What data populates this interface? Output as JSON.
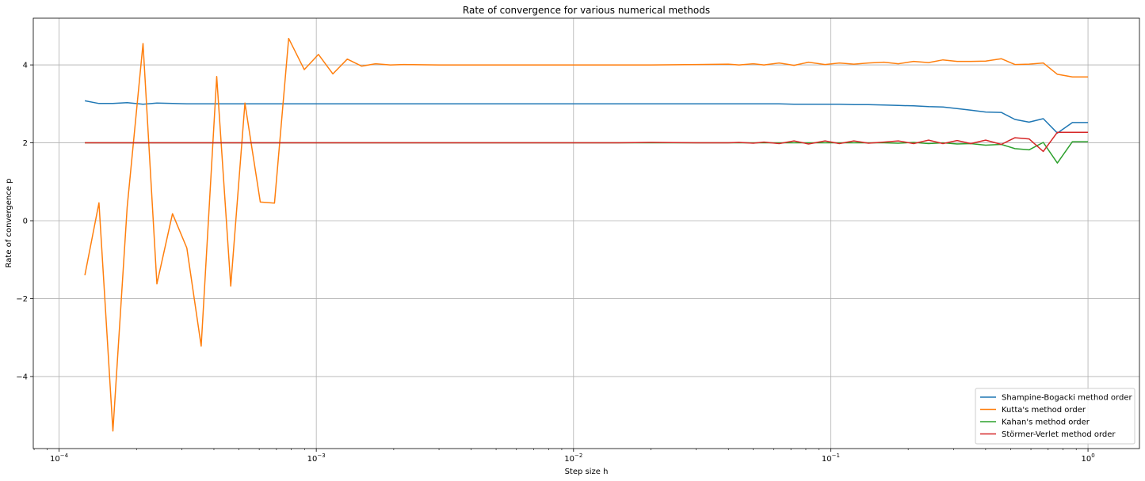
{
  "chart_data": {
    "type": "line",
    "title": "Rate of convergence for various numerical methods",
    "xlabel": "Step size h",
    "ylabel": "Rate of convergence p",
    "xscale": "log",
    "xlim": [
      7.94e-05,
      1.585
    ],
    "ylim": [
      -5.85,
      5.2
    ],
    "grid": true,
    "legend_position": "lower-right",
    "x_ticks": [
      {
        "value": 0.0001,
        "base": "10",
        "exp": "−4"
      },
      {
        "value": 0.001,
        "base": "10",
        "exp": "−3"
      },
      {
        "value": 0.01,
        "base": "10",
        "exp": "−2"
      },
      {
        "value": 0.1,
        "base": "10",
        "exp": "−1"
      },
      {
        "value": 1,
        "base": "10",
        "exp": "0"
      }
    ],
    "y_ticks": [
      {
        "value": -4,
        "label": "−4"
      },
      {
        "value": -2,
        "label": "−2"
      },
      {
        "value": 0,
        "label": "0"
      },
      {
        "value": 2,
        "label": "2"
      },
      {
        "value": 4,
        "label": "4"
      }
    ],
    "x": [
      0.000126,
      0.000143,
      0.000162,
      0.000184,
      0.000212,
      0.00024,
      0.000276,
      0.000314,
      0.000357,
      0.00041,
      0.000465,
      0.000528,
      0.000606,
      0.000688,
      0.000781,
      0.000898,
      0.00102,
      0.00116,
      0.00132,
      0.0015,
      0.0017,
      0.00194,
      0.0022,
      0.003,
      0.005,
      0.008,
      0.01,
      0.015,
      0.02,
      0.03,
      0.04,
      0.044,
      0.05,
      0.055,
      0.063,
      0.072,
      0.082,
      0.095,
      0.108,
      0.123,
      0.14,
      0.161,
      0.183,
      0.21,
      0.24,
      0.273,
      0.31,
      0.35,
      0.4,
      0.46,
      0.52,
      0.59,
      0.67,
      0.76,
      0.87,
      1.0
    ],
    "series": [
      {
        "name": "Shampine-Bogacki method order",
        "color": "#1f77b4",
        "values": [
          3.08,
          3.01,
          3.01,
          3.03,
          2.99,
          3.02,
          3.01,
          3.0,
          3.0,
          3.0,
          3.0,
          3.0,
          3.0,
          3.0,
          3.0,
          3.0,
          3.0,
          3.0,
          3.0,
          3.0,
          3.0,
          3.0,
          3.0,
          3.0,
          3.0,
          3.0,
          3.0,
          3.0,
          3.0,
          3.0,
          3.0,
          3.0,
          3.0,
          3.0,
          3.0,
          2.99,
          2.99,
          2.99,
          2.99,
          2.98,
          2.98,
          2.97,
          2.96,
          2.95,
          2.93,
          2.92,
          2.88,
          2.84,
          2.79,
          2.78,
          2.6,
          2.53,
          2.62,
          2.25,
          2.52,
          2.52
        ]
      },
      {
        "name": "Kutta's method order",
        "color": "#ff7f0e",
        "values": [
          -1.4,
          0.46,
          -5.4,
          0.35,
          4.55,
          -1.62,
          0.18,
          -0.7,
          -3.22,
          3.7,
          -1.68,
          3.02,
          0.48,
          0.45,
          4.68,
          3.88,
          4.27,
          3.77,
          4.15,
          3.97,
          4.03,
          4.0,
          4.01,
          4.0,
          4.0,
          4.0,
          4.0,
          4.0,
          4.0,
          4.01,
          4.02,
          4.0,
          4.03,
          4.0,
          4.05,
          3.99,
          4.07,
          4.01,
          4.05,
          4.02,
          4.05,
          4.07,
          4.03,
          4.09,
          4.06,
          4.13,
          4.09,
          4.09,
          4.1,
          4.16,
          4.01,
          4.02,
          4.05,
          3.76,
          3.69,
          3.69
        ]
      },
      {
        "name": "Kahan's method order",
        "color": "#2ca02c",
        "values": [
          2.0,
          2.0,
          2.0,
          2.0,
          2.0,
          2.0,
          2.0,
          2.0,
          2.0,
          2.0,
          2.0,
          2.0,
          2.0,
          2.0,
          2.0,
          2.0,
          2.0,
          2.0,
          2.0,
          2.0,
          2.0,
          2.0,
          2.0,
          2.0,
          2.0,
          2.0,
          2.0,
          2.0,
          2.0,
          2.0,
          2.0,
          2.0,
          2.0,
          2.0,
          2.0,
          2.0,
          2.0,
          2.0,
          2.0,
          2.0,
          2.0,
          2.0,
          1.99,
          2.01,
          1.98,
          2.0,
          1.97,
          1.98,
          1.94,
          1.96,
          1.85,
          1.82,
          2.01,
          1.48,
          2.03,
          2.03
        ]
      },
      {
        "name": "Störmer-Verlet method order",
        "color": "#d62728",
        "values": [
          2.0,
          2.0,
          2.0,
          2.0,
          2.0,
          2.0,
          2.0,
          2.0,
          2.0,
          2.0,
          2.0,
          2.0,
          2.0,
          2.0,
          2.0,
          2.0,
          2.0,
          2.0,
          2.0,
          2.0,
          2.0,
          2.0,
          2.0,
          2.0,
          2.0,
          2.0,
          2.0,
          2.0,
          2.01,
          2.0,
          2.0,
          2.01,
          1.99,
          2.02,
          1.98,
          2.05,
          1.97,
          2.05,
          1.98,
          2.05,
          1.99,
          2.02,
          2.05,
          1.98,
          2.07,
          1.98,
          2.06,
          1.98,
          2.07,
          1.96,
          2.13,
          2.1,
          1.78,
          2.27,
          2.27,
          2.27
        ]
      }
    ]
  }
}
